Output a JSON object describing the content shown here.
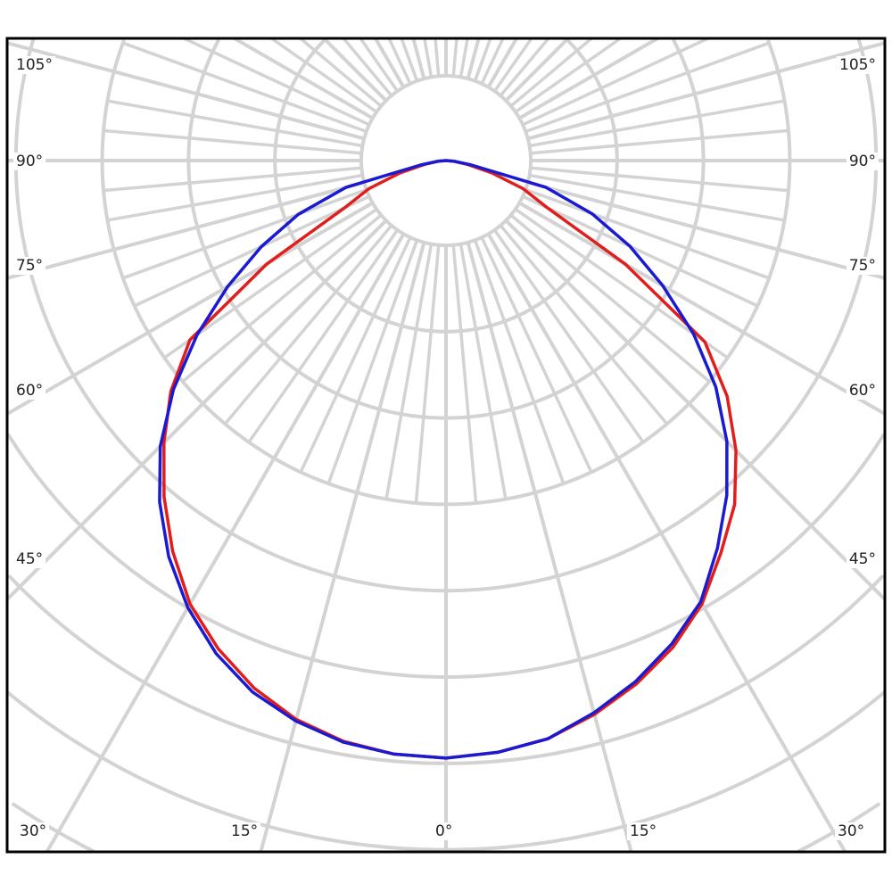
{
  "chart_data": {
    "type": "polar",
    "title": "",
    "angle_unit": "degrees",
    "zero_direction": "down",
    "angle_tick_labels": {
      "left": [
        "105°",
        "90°",
        "75°",
        "60°",
        "45°",
        "30°"
      ],
      "right": [
        "105°",
        "90°",
        "75°",
        "60°",
        "45°",
        "30°"
      ],
      "bottom": [
        "30°",
        "15°",
        "0°",
        "15°",
        "30°"
      ]
    },
    "radial_grid_rings": 10,
    "radial_tick_labels": [],
    "grid": true,
    "grid_color": "#d3d3d3",
    "angles": [
      -90,
      -85,
      -80,
      -75,
      -70,
      -65,
      -60,
      -55,
      -50,
      -45,
      -40,
      -35,
      -30,
      -25,
      -20,
      -15,
      -10,
      -5,
      0,
      5,
      10,
      15,
      20,
      25,
      30,
      35,
      40,
      45,
      50,
      55,
      60,
      65,
      70,
      75,
      80,
      85,
      90
    ],
    "series": [
      {
        "color": "#e01e1e",
        "values": [
          0,
          0.08,
          0.25,
          0.55,
          0.95,
          1.3,
          2.4,
          3.66,
          4.25,
          4.75,
          5.2,
          5.55,
          5.93,
          6.22,
          6.45,
          6.64,
          6.8,
          6.88,
          6.92,
          6.9,
          6.83,
          6.7,
          6.5,
          6.24,
          5.93,
          5.52,
          5.08,
          4.62,
          4.16,
          3.62,
          2.4,
          1.3,
          0.95,
          0.55,
          0.25,
          0.08,
          0
        ]
      },
      {
        "color": "#1a1ad0",
        "values": [
          0,
          0.1,
          0.3,
          1.2,
          1.8,
          2.35,
          2.9,
          3.5,
          4.08,
          4.6,
          5.06,
          5.48,
          5.9,
          6.18,
          6.42,
          6.62,
          6.8,
          6.88,
          6.92,
          6.9,
          6.84,
          6.72,
          6.55,
          6.3,
          5.98,
          5.6,
          5.16,
          4.68,
          4.12,
          3.52,
          2.92,
          2.36,
          1.82,
          1.2,
          0.3,
          0.1,
          0
        ]
      }
    ]
  }
}
